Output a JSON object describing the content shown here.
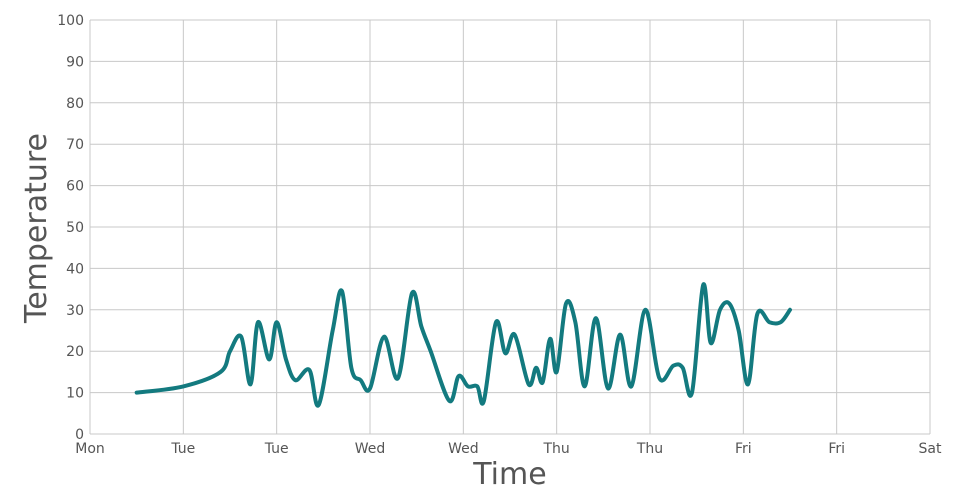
{
  "chart_data": {
    "type": "line",
    "xlabel": "Time",
    "ylabel": "Temperature",
    "ylim": [
      0,
      100
    ],
    "yticks": [
      0,
      10,
      20,
      30,
      40,
      50,
      60,
      70,
      80,
      90,
      100
    ],
    "xticks": [
      "Mon",
      "Tue",
      "Tue",
      "Wed",
      "Wed",
      "Thu",
      "Thu",
      "Fri",
      "Fri",
      "Sat"
    ],
    "grid": true,
    "line_color": "#137a7f",
    "series": [
      {
        "points": [
          [
            0.5,
            10.0
          ],
          [
            1.0,
            11.5
          ],
          [
            1.4,
            15.0
          ],
          [
            1.5,
            20.0
          ],
          [
            1.62,
            23.5
          ],
          [
            1.72,
            12.0
          ],
          [
            1.8,
            27.0
          ],
          [
            1.92,
            18.0
          ],
          [
            2.0,
            27.0
          ],
          [
            2.1,
            18.0
          ],
          [
            2.2,
            13.0
          ],
          [
            2.35,
            15.5
          ],
          [
            2.45,
            7.0
          ],
          [
            2.6,
            25.0
          ],
          [
            2.7,
            34.5
          ],
          [
            2.8,
            16.0
          ],
          [
            2.9,
            13.0
          ],
          [
            3.0,
            11.0
          ],
          [
            3.15,
            23.5
          ],
          [
            3.3,
            13.5
          ],
          [
            3.45,
            34.0
          ],
          [
            3.55,
            26.0
          ],
          [
            3.65,
            20.0
          ],
          [
            3.85,
            8.0
          ],
          [
            3.95,
            14.0
          ],
          [
            4.05,
            11.5
          ],
          [
            4.15,
            11.5
          ],
          [
            4.22,
            8.0
          ],
          [
            4.35,
            27.0
          ],
          [
            4.45,
            19.5
          ],
          [
            4.55,
            24.0
          ],
          [
            4.7,
            12.0
          ],
          [
            4.78,
            16.0
          ],
          [
            4.85,
            12.5
          ],
          [
            4.93,
            23.0
          ],
          [
            5.0,
            15.0
          ],
          [
            5.1,
            31.5
          ],
          [
            5.2,
            27.0
          ],
          [
            5.3,
            11.5
          ],
          [
            5.42,
            28.0
          ],
          [
            5.55,
            11.0
          ],
          [
            5.68,
            24.0
          ],
          [
            5.8,
            11.5
          ],
          [
            5.95,
            30.0
          ],
          [
            6.1,
            13.5
          ],
          [
            6.25,
            16.5
          ],
          [
            6.35,
            16.0
          ],
          [
            6.45,
            10.0
          ],
          [
            6.57,
            36.0
          ],
          [
            6.65,
            22.0
          ],
          [
            6.75,
            30.0
          ],
          [
            6.85,
            31.5
          ],
          [
            6.95,
            25.0
          ],
          [
            7.05,
            12.0
          ],
          [
            7.15,
            29.0
          ],
          [
            7.28,
            27.0
          ],
          [
            7.4,
            27.0
          ],
          [
            7.5,
            30.0
          ]
        ]
      }
    ]
  }
}
